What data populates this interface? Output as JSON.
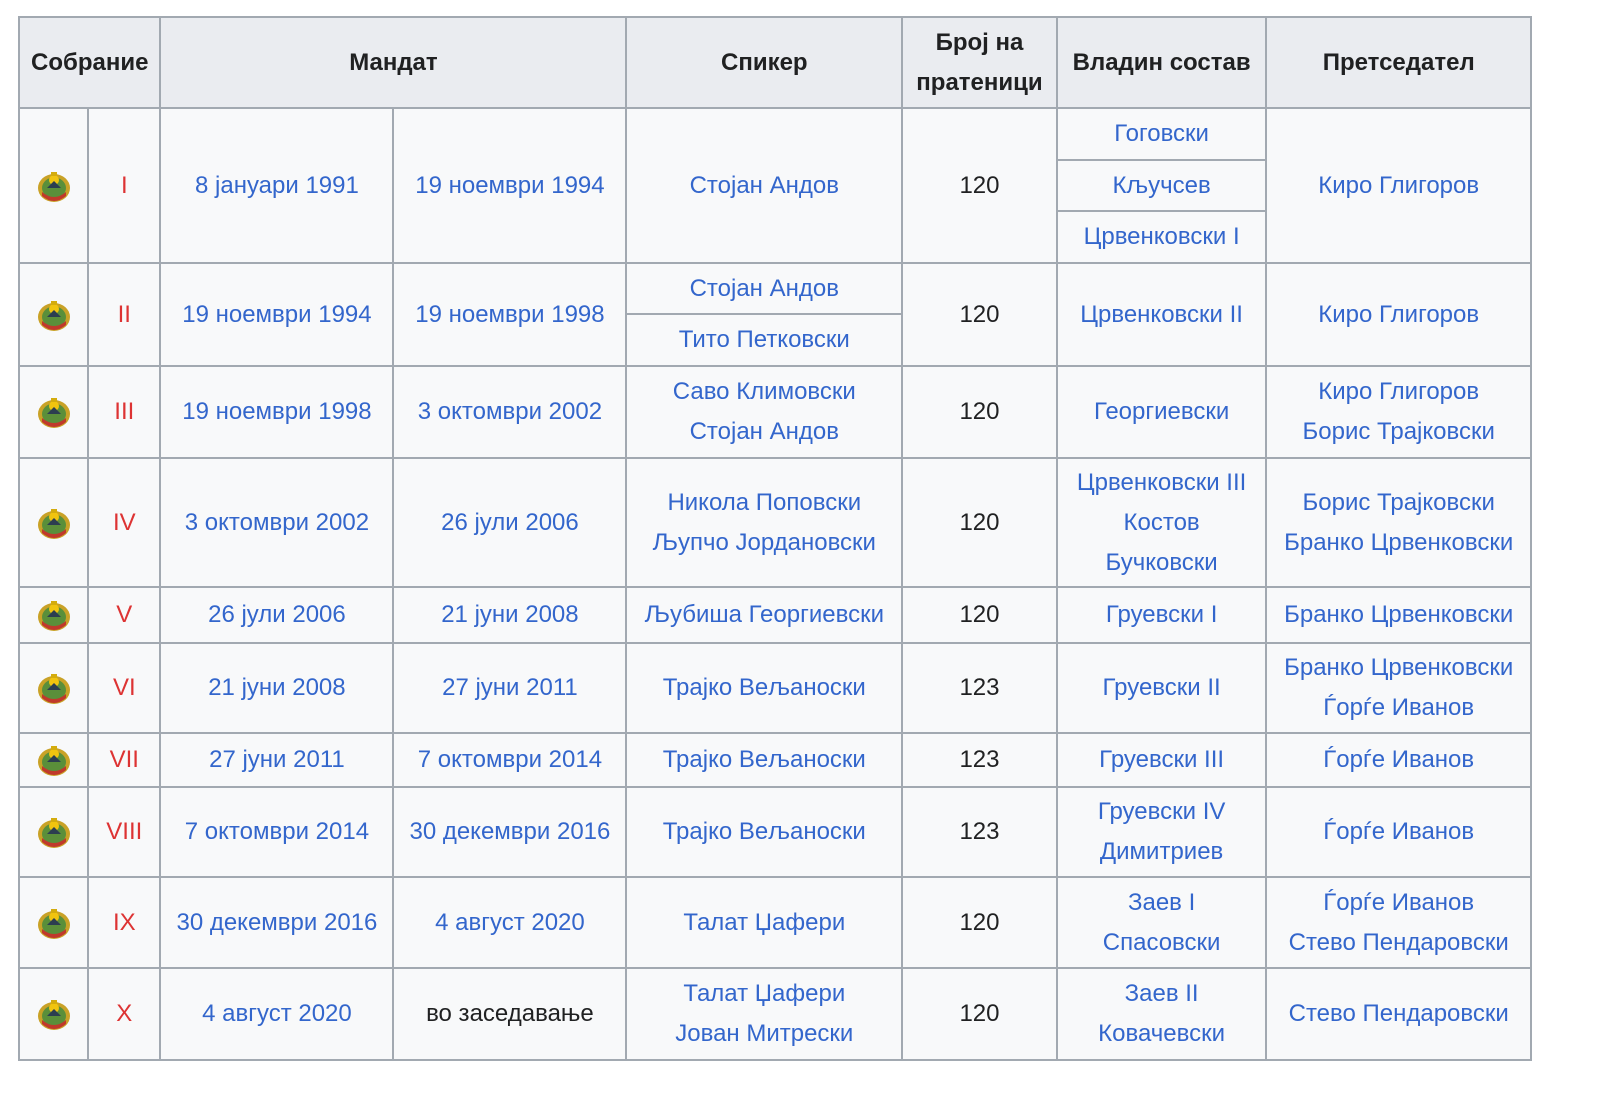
{
  "headers": {
    "assembly": "Собрание",
    "mandate": "Мандат",
    "speaker": "Спикер",
    "mps": "Број на пратеници",
    "government": "Владин состав",
    "president": "Претседател"
  },
  "emblem_icon": "emblem-of-north-macedonia",
  "colors": {
    "link": "#3366cc",
    "roman": "#dd3333",
    "header_bg": "#eaecf0",
    "border": "#a2a9b1"
  },
  "rows": [
    {
      "roman": "I",
      "start": "8 јануари 1991",
      "end": "19 ноември 1994",
      "speaker": "Стојан Андов",
      "mps": "120",
      "gov": [
        "Гоговски",
        "Кључсев",
        "Црвенковски I"
      ],
      "president": [
        "Киро Глигоров"
      ]
    },
    {
      "roman": "II",
      "start": "19 ноември 1994",
      "end": "19 ноември 1998",
      "speaker_split": [
        "Стојан Андов",
        "Тито Петковски"
      ],
      "mps": "120",
      "gov": [
        "Црвенковски II"
      ],
      "president": [
        "Киро Глигоров"
      ]
    },
    {
      "roman": "III",
      "start": "19 ноември 1998",
      "end": "3 октомври 2002",
      "speakers": [
        "Саво Климовски",
        "Стојан Андов"
      ],
      "mps": "120",
      "gov": [
        "Георгиевски"
      ],
      "president": [
        "Киро Глигоров",
        "Борис Трајковски"
      ]
    },
    {
      "roman": "IV",
      "start": "3 октомври 2002",
      "end": "26 јули 2006",
      "speakers": [
        "Никола Поповски",
        "Љупчо Јордановски"
      ],
      "mps": "120",
      "gov": [
        "Црвенковски III",
        "Костов",
        "Бучковски"
      ],
      "president": [
        "Борис Трајковски",
        "Бранко Црвенковски"
      ]
    },
    {
      "roman": "V",
      "start": "26 јули 2006",
      "end": "21 јуни 2008",
      "speakers": [
        "Љубиша Георгиевски"
      ],
      "mps": "120",
      "gov": [
        "Груевски I"
      ],
      "president": [
        "Бранко Црвенковски"
      ]
    },
    {
      "roman": "VI",
      "start": "21 јуни 2008",
      "end": "27 јуни 2011",
      "speakers": [
        "Трајко Вељаноски"
      ],
      "mps": "123",
      "gov": [
        "Груевски II"
      ],
      "president": [
        "Бранко Црвенковски",
        "Ѓорѓе Иванов"
      ]
    },
    {
      "roman": "VII",
      "start": "27 јуни 2011",
      "end": "7 октомври 2014",
      "speakers": [
        "Трајко Вељаноски"
      ],
      "mps": "123",
      "gov": [
        "Груевски III"
      ],
      "president": [
        "Ѓорѓе Иванов"
      ]
    },
    {
      "roman": "VIII",
      "start": "7 октомври 2014",
      "end": "30 декември 2016",
      "speakers": [
        "Трајко Вељаноски"
      ],
      "mps": "123",
      "gov": [
        "Груевски IV",
        "Димитриев"
      ],
      "president": [
        "Ѓорѓе Иванов"
      ]
    },
    {
      "roman": "IX",
      "start": "30 декември 2016",
      "end": "4 август 2020",
      "speakers": [
        "Талат Џафери"
      ],
      "mps": "120",
      "gov": [
        "Заев I",
        "Спасовски"
      ],
      "president": [
        "Ѓорѓе Иванов",
        "Стево Пендаровски"
      ]
    },
    {
      "roman": "X",
      "start": "4 август 2020",
      "end": "во заседавање",
      "speakers": [
        "Талат Џафери",
        "Јован Митрески"
      ],
      "mps": "120",
      "gov": [
        "Заев II",
        "Ковачевски"
      ],
      "president": [
        "Стево Пендаровски"
      ]
    }
  ]
}
